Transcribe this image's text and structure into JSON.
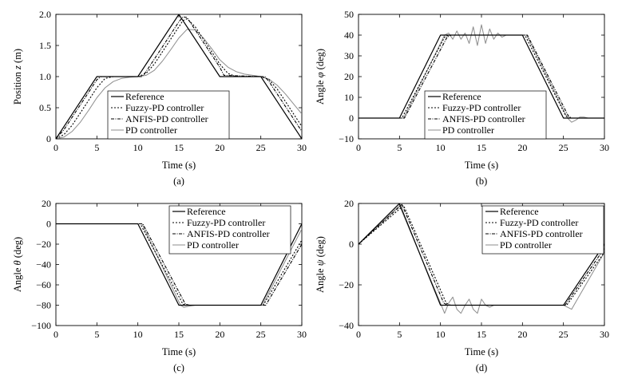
{
  "chart_data": [
    {
      "type": "line",
      "panel_label": "(a)",
      "xlabel": "Time (s)",
      "ylabel": "Position z (m)",
      "ylabel_parts": {
        "pre": "Position ",
        "sym": "z",
        "post": " (m)"
      },
      "xlim": [
        0,
        30
      ],
      "ylim": [
        0,
        2
      ],
      "xticks": [
        0,
        5,
        10,
        15,
        20,
        25,
        30
      ],
      "yticks": [
        0,
        0.5,
        1.0,
        1.5,
        2.0
      ],
      "ytick_labels": [
        "0",
        "0.5",
        "1.0",
        "1.5",
        "2.0"
      ],
      "grid": false,
      "legend_position": "lower-middle",
      "series": [
        {
          "name": "Reference",
          "x": [
            0,
            5,
            10,
            15,
            20,
            25,
            30
          ],
          "y": [
            0,
            1,
            1,
            2,
            1,
            1,
            0
          ]
        },
        {
          "name": "Fuzzy-PD controller",
          "x": [
            0,
            1,
            2,
            3,
            4,
            5,
            6,
            7,
            10,
            11,
            12,
            13,
            14,
            15,
            15.5,
            16,
            17,
            18,
            19,
            20,
            21,
            22,
            25,
            26,
            27,
            28,
            29,
            30
          ],
          "y": [
            0,
            0.07,
            0.22,
            0.42,
            0.62,
            0.82,
            0.97,
            1.0,
            1.0,
            1.05,
            1.2,
            1.4,
            1.6,
            1.8,
            1.9,
            1.93,
            1.8,
            1.6,
            1.4,
            1.2,
            1.05,
            1.0,
            1.0,
            0.95,
            0.8,
            0.6,
            0.4,
            0.2
          ]
        },
        {
          "name": "ANFIS-PD controller",
          "x": [
            0,
            1,
            2,
            3,
            4,
            5,
            5.5,
            10,
            10.5,
            11,
            12,
            13,
            14,
            15,
            15.5,
            16,
            17,
            18,
            19,
            20,
            20.5,
            25,
            25.5,
            26,
            27,
            28,
            29,
            30
          ],
          "y": [
            0,
            0.15,
            0.35,
            0.55,
            0.75,
            0.95,
            1.0,
            1.0,
            1.0,
            1.08,
            1.28,
            1.48,
            1.68,
            1.88,
            1.96,
            1.95,
            1.75,
            1.55,
            1.35,
            1.15,
            1.02,
            1.0,
            1.0,
            0.92,
            0.72,
            0.52,
            0.32,
            0.12
          ]
        },
        {
          "name": "PD controller",
          "x": [
            0,
            1,
            2,
            3,
            4,
            5,
            6,
            7,
            8,
            9,
            10,
            11,
            12,
            13,
            14,
            15,
            16,
            17,
            18,
            19,
            20,
            21,
            22,
            23,
            24,
            25,
            26,
            27,
            28,
            29,
            30
          ],
          "y": [
            0,
            0.03,
            0.12,
            0.27,
            0.46,
            0.66,
            0.82,
            0.92,
            0.97,
            0.99,
            1.0,
            1.02,
            1.1,
            1.25,
            1.43,
            1.62,
            1.76,
            1.75,
            1.62,
            1.45,
            1.27,
            1.15,
            1.08,
            1.04,
            1.02,
            1.0,
            0.96,
            0.86,
            0.72,
            0.56,
            0.4
          ]
        }
      ]
    },
    {
      "type": "line",
      "panel_label": "(b)",
      "xlabel": "Time (s)",
      "ylabel": "Angle φ (deg)",
      "ylabel_parts": {
        "pre": "Angle ",
        "sym": "φ",
        "post": " (deg)"
      },
      "xlim": [
        0,
        30
      ],
      "ylim": [
        -10,
        50
      ],
      "xticks": [
        0,
        5,
        10,
        15,
        20,
        25,
        30
      ],
      "yticks": [
        -10,
        0,
        10,
        20,
        30,
        40,
        50
      ],
      "ytick_labels": [
        "−10",
        "0",
        "10",
        "20",
        "30",
        "40",
        "50"
      ],
      "grid": false,
      "legend_position": "lower-middle",
      "series": [
        {
          "name": "Reference",
          "x": [
            0,
            5,
            10,
            20,
            25,
            30
          ],
          "y": [
            0,
            0,
            40,
            40,
            0,
            0
          ]
        },
        {
          "name": "Fuzzy-PD controller",
          "x": [
            0,
            5.3,
            10.5,
            11,
            20.3,
            25.3,
            25.8,
            30
          ],
          "y": [
            0,
            0,
            39,
            40,
            40,
            1,
            0,
            0
          ]
        },
        {
          "name": "ANFIS-PD controller",
          "x": [
            0,
            5.6,
            10.8,
            11.3,
            20.6,
            25.6,
            26,
            30
          ],
          "y": [
            0,
            0,
            39,
            40,
            40,
            1,
            0,
            0
          ]
        },
        {
          "name": "PD controller",
          "x": [
            0,
            5,
            5.5,
            10.5,
            11,
            11.5,
            12,
            12.5,
            13,
            13.5,
            14,
            14.5,
            15,
            15.5,
            16,
            16.5,
            17,
            17.5,
            18,
            19,
            20,
            20.5,
            25.5,
            26,
            26.5,
            27,
            27.5,
            28,
            29,
            30
          ],
          "y": [
            0,
            0,
            0,
            40,
            41,
            38,
            42,
            38,
            41,
            36,
            44,
            35,
            45,
            36,
            43,
            38,
            41,
            39,
            40,
            40,
            40,
            40,
            0,
            -2,
            -1,
            0.5,
            0.5,
            0,
            0,
            0
          ]
        }
      ]
    },
    {
      "type": "line",
      "panel_label": "(c)",
      "xlabel": "Time (s)",
      "ylabel": "Angle θ (deg)",
      "ylabel_parts": {
        "pre": "Angle ",
        "sym": "θ",
        "post": " (deg)"
      },
      "xlim": [
        0,
        30
      ],
      "ylim": [
        -100,
        20
      ],
      "xticks": [
        0,
        5,
        10,
        15,
        20,
        25,
        30
      ],
      "yticks": [
        -100,
        -80,
        -60,
        -40,
        -20,
        0,
        20
      ],
      "ytick_labels": [
        "−100",
        "−80",
        "−60",
        "−40",
        "−20",
        "0",
        "20"
      ],
      "grid": false,
      "legend_position": "top-right",
      "series": [
        {
          "name": "Reference",
          "x": [
            0,
            10,
            15,
            25,
            30
          ],
          "y": [
            0,
            0,
            -80,
            -80,
            0
          ]
        },
        {
          "name": "Fuzzy-PD controller",
          "x": [
            0,
            10.3,
            15.5,
            16,
            25.3,
            30
          ],
          "y": [
            0,
            0,
            -79,
            -80,
            -80,
            -16
          ]
        },
        {
          "name": "ANFIS-PD controller",
          "x": [
            0,
            10.6,
            15.8,
            16.3,
            25.6,
            30
          ],
          "y": [
            0,
            0,
            -79,
            -80,
            -80,
            -20
          ]
        },
        {
          "name": "PD controller",
          "x": [
            0,
            10,
            10.5,
            15.2,
            15.6,
            16.2,
            17,
            25.2,
            30
          ],
          "y": [
            0,
            0,
            0,
            -80,
            -82,
            -81,
            -80,
            -80,
            -5
          ]
        }
      ]
    },
    {
      "type": "line",
      "panel_label": "(d)",
      "xlabel": "Time (s)",
      "ylabel": "Angle ψ (deg)",
      "ylabel_parts": {
        "pre": "Angle ",
        "sym": "ψ",
        "post": " (deg)"
      },
      "xlim": [
        0,
        30
      ],
      "ylim": [
        -40,
        20
      ],
      "xticks": [
        0,
        5,
        10,
        15,
        20,
        25,
        30
      ],
      "yticks": [
        -40,
        -20,
        0,
        20
      ],
      "ytick_labels": [
        "−40",
        "−20",
        "0",
        "20"
      ],
      "grid": false,
      "legend_position": "top-right",
      "series": [
        {
          "name": "Reference",
          "x": [
            0,
            5,
            10,
            25,
            30
          ],
          "y": [
            0,
            20,
            -30,
            -30,
            0
          ]
        },
        {
          "name": "Fuzzy-PD controller",
          "x": [
            0,
            5.5,
            10.7,
            11.2,
            25.4,
            30
          ],
          "y": [
            0,
            19,
            -29,
            -30,
            -30,
            -4
          ]
        },
        {
          "name": "ANFIS-PD controller",
          "x": [
            0,
            5.3,
            10.4,
            10.9,
            25.2,
            30
          ],
          "y": [
            0,
            19.5,
            -29,
            -30,
            -30,
            -2
          ]
        },
        {
          "name": "PD controller",
          "x": [
            0,
            5,
            10,
            10.5,
            11,
            11.5,
            12,
            12.5,
            13,
            13.5,
            14,
            14.5,
            15,
            15.5,
            16,
            16.5,
            17,
            18,
            25,
            25.5,
            26,
            30
          ],
          "y": [
            0,
            19,
            -29,
            -34,
            -29,
            -26,
            -32,
            -34,
            -30,
            -27,
            -32,
            -34,
            -27,
            -30,
            -31,
            -30,
            -30,
            -30,
            -30,
            -31,
            -32,
            -4
          ]
        }
      ]
    }
  ]
}
